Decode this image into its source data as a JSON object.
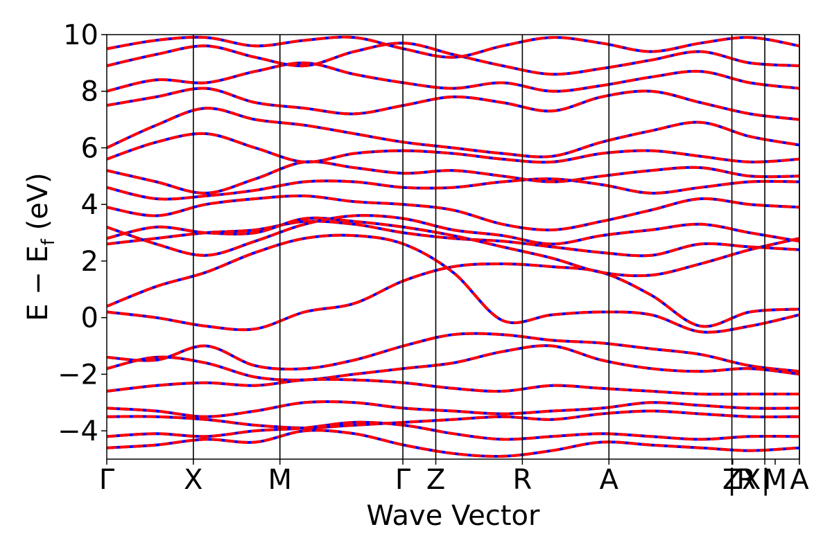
{
  "chart_data": {
    "type": "line",
    "xlabel": "Wave Vector",
    "ylabel": "E − E",
    "ylabel_sub": "f",
    "ylabel_unit": " (eV)",
    "ylim": [
      -5,
      10
    ],
    "yticks": [
      {
        "value": -4,
        "label": "−4"
      },
      {
        "value": -2,
        "label": "−2"
      },
      {
        "value": 0,
        "label": "0"
      },
      {
        "value": 2,
        "label": "2"
      },
      {
        "value": 4,
        "label": "4"
      },
      {
        "value": 6,
        "label": "6"
      },
      {
        "value": 8,
        "label": "8"
      },
      {
        "value": 10,
        "label": "10"
      }
    ],
    "xlim": [
      0,
      8.0
    ],
    "kpoints": [
      {
        "label": "Γ",
        "x": 0.0
      },
      {
        "label": "X",
        "x": 1.0
      },
      {
        "label": "M",
        "x": 2.0
      },
      {
        "label": "Γ",
        "x": 3.42
      },
      {
        "label": "Z",
        "x": 3.8
      },
      {
        "label": "R",
        "x": 4.8
      },
      {
        "label": "A",
        "x": 5.8
      },
      {
        "label": "Z",
        "x": 7.22
      },
      {
        "label": "|R",
        "x": 7.23
      },
      {
        "label": "X|",
        "x": 7.6
      },
      {
        "label": "M",
        "x": 7.72
      },
      {
        "label": "A",
        "x": 8.0
      }
    ],
    "vlines": [
      1.0,
      2.0,
      3.42,
      3.8,
      4.8,
      5.8,
      7.22,
      7.6,
      8.0
    ],
    "grid": false,
    "series_styles": [
      {
        "style": "solid",
        "color": "#0000ff"
      },
      {
        "style": "dashed",
        "color": "#ff0000"
      }
    ],
    "bands": [
      [
        0.2,
        0.0,
        -0.3,
        -0.4,
        0.2,
        0.5,
        1.3,
        1.8,
        1.9,
        1.8,
        1.6,
        0.8,
        -0.3,
        0.2,
        0.3
      ],
      [
        0.4,
        1.1,
        1.6,
        2.3,
        2.8,
        2.9,
        2.6,
        1.6,
        -0.1,
        0.1,
        0.2,
        0.1,
        -0.5,
        -0.3,
        0.1
      ],
      [
        -1.4,
        -1.5,
        -1.0,
        -1.7,
        -1.8,
        -1.5,
        -1.0,
        -0.6,
        -0.6,
        -0.8,
        -0.9,
        -1.1,
        -1.3,
        -1.7,
        -1.9
      ],
      [
        -1.8,
        -1.4,
        -1.6,
        -2.1,
        -2.2,
        -2.0,
        -1.8,
        -1.6,
        -1.2,
        -1.0,
        -1.5,
        -1.8,
        -1.9,
        -1.8,
        -2.0
      ],
      [
        -2.6,
        -2.4,
        -2.3,
        -2.4,
        -2.2,
        -2.2,
        -2.3,
        -2.5,
        -2.6,
        -2.4,
        -2.5,
        -2.6,
        -2.7,
        -2.7,
        -2.7
      ],
      [
        -3.2,
        -3.3,
        -3.5,
        -3.3,
        -3.0,
        -3.0,
        -3.2,
        -3.3,
        -3.4,
        -3.3,
        -3.2,
        -3.0,
        -3.1,
        -3.2,
        -3.2
      ],
      [
        -3.5,
        -3.5,
        -3.6,
        -3.8,
        -3.9,
        -3.8,
        -3.7,
        -3.6,
        -3.5,
        -3.6,
        -3.4,
        -3.3,
        -3.4,
        -3.5,
        -3.5
      ],
      [
        -4.2,
        -4.1,
        -4.2,
        -4.0,
        -3.9,
        -3.7,
        -3.8,
        -4.1,
        -4.3,
        -4.2,
        -4.1,
        -4.2,
        -4.3,
        -4.2,
        -4.2
      ],
      [
        -4.6,
        -4.5,
        -4.3,
        -4.4,
        -4.0,
        -4.1,
        -4.5,
        -4.8,
        -4.9,
        -4.7,
        -4.4,
        -4.5,
        -4.6,
        -4.7,
        -4.6
      ],
      [
        2.6,
        2.8,
        3.0,
        3.1,
        3.4,
        3.3,
        3.0,
        2.8,
        2.7,
        2.5,
        2.3,
        2.2,
        2.6,
        2.5,
        2.4
      ],
      [
        2.8,
        3.2,
        3.0,
        3.0,
        3.5,
        3.4,
        3.2,
        2.9,
        2.5,
        2.1,
        1.6,
        1.5,
        1.9,
        2.4,
        2.8
      ],
      [
        3.2,
        2.6,
        2.2,
        2.7,
        3.3,
        3.6,
        3.5,
        3.1,
        2.9,
        2.6,
        2.9,
        3.1,
        3.3,
        3.0,
        2.7
      ],
      [
        3.9,
        3.6,
        4.0,
        4.2,
        4.3,
        4.1,
        4.0,
        3.8,
        3.3,
        3.1,
        3.4,
        3.8,
        4.2,
        4.0,
        3.9
      ],
      [
        4.6,
        4.2,
        4.3,
        4.5,
        4.8,
        4.8,
        4.6,
        4.6,
        4.8,
        4.9,
        4.7,
        4.4,
        4.6,
        4.8,
        4.8
      ],
      [
        5.2,
        4.8,
        4.4,
        4.9,
        5.5,
        5.3,
        5.1,
        5.2,
        5.0,
        4.8,
        5.0,
        5.2,
        5.3,
        5.0,
        5.0
      ],
      [
        5.6,
        6.2,
        6.5,
        6.0,
        5.5,
        5.8,
        5.9,
        5.8,
        5.6,
        5.5,
        5.8,
        5.9,
        5.7,
        5.5,
        5.6
      ],
      [
        6.0,
        6.8,
        7.4,
        7.0,
        6.8,
        6.5,
        6.2,
        6.0,
        5.8,
        5.7,
        6.2,
        6.6,
        6.9,
        6.4,
        6.1
      ],
      [
        7.5,
        7.8,
        8.1,
        7.6,
        7.4,
        7.2,
        7.5,
        7.8,
        7.6,
        7.3,
        7.8,
        8.0,
        7.6,
        7.2,
        7.0
      ],
      [
        8.0,
        8.4,
        8.3,
        8.7,
        9.0,
        8.6,
        8.3,
        8.1,
        8.3,
        8.0,
        8.2,
        8.5,
        8.7,
        8.3,
        8.1
      ],
      [
        8.9,
        9.3,
        9.6,
        9.2,
        8.9,
        9.4,
        9.7,
        9.3,
        8.9,
        8.6,
        8.8,
        9.1,
        9.4,
        9.0,
        8.9
      ],
      [
        9.5,
        9.8,
        9.9,
        9.6,
        9.8,
        9.9,
        9.5,
        9.2,
        9.6,
        9.9,
        9.7,
        9.4,
        9.7,
        9.9,
        9.6
      ]
    ]
  }
}
